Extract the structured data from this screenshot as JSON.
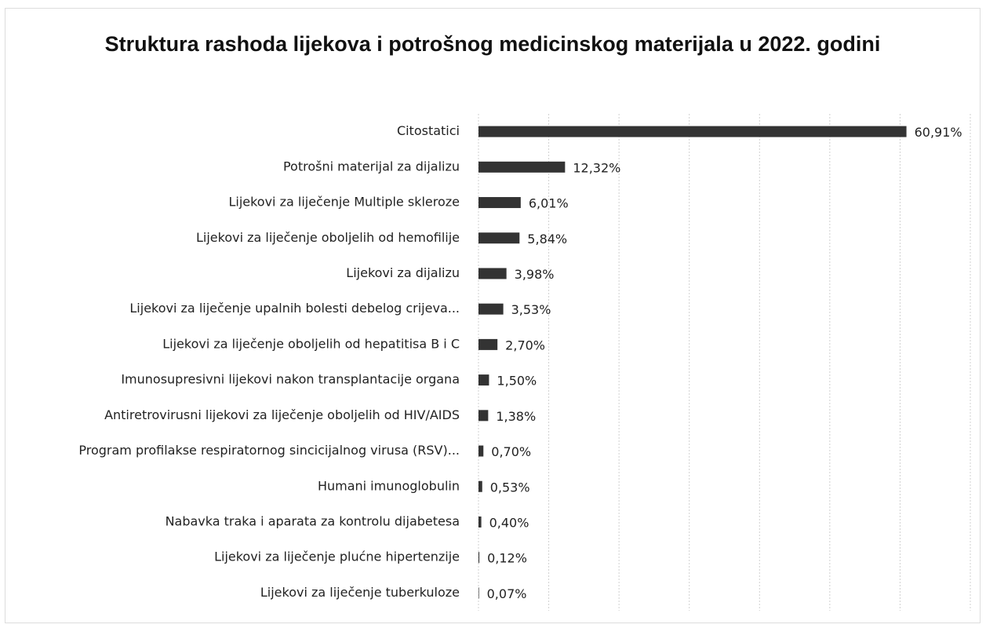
{
  "chart_data": {
    "type": "bar",
    "orientation": "horizontal",
    "title": "Struktura rashoda lijekova i potrošnog medicinskog materijala u 2022. godini",
    "categories": [
      "Citostatici",
      "Potrošni materijal za dijalizu",
      "Lijekovi za liječenje Multiple skleroze",
      "Lijekovi za liječenje oboljelih od hemofilije",
      "Lijekovi za dijalizu",
      "Lijekovi za liječenje upalnih bolesti debelog crijeva...",
      "Lijekovi za liječenje oboljelih od hepatitisa B i C",
      "Imunosupresivni lijekovi nakon transplantacije organa",
      "Antiretrovirusni lijekovi za liječenje oboljelih od HIV/AIDS",
      "Program profilakse respiratornog sincicijalnog virusa (RSV)...",
      "Humani imunoglobulin",
      "Nabavka traka i aparata za kontrolu dijabetesa",
      "Lijekovi za liječenje plućne hipertenzije",
      "Lijekovi za liječenje tuberkuloze"
    ],
    "values": [
      60.91,
      12.32,
      6.01,
      5.84,
      3.98,
      3.53,
      2.7,
      1.5,
      1.38,
      0.7,
      0.53,
      0.4,
      0.12,
      0.07
    ],
    "value_labels": [
      "60,91%",
      "12,32%",
      "6,01%",
      "5,84%",
      "3,98%",
      "3,53%",
      "2,70%",
      "1,50%",
      "1,38%",
      "0,70%",
      "0,53%",
      "0,40%",
      "0,12%",
      "0,07%"
    ],
    "color": "#333333",
    "xlim": [
      0,
      70
    ],
    "xticks": [
      0,
      10,
      20,
      30,
      40,
      50,
      60,
      70
    ],
    "grid": true
  }
}
